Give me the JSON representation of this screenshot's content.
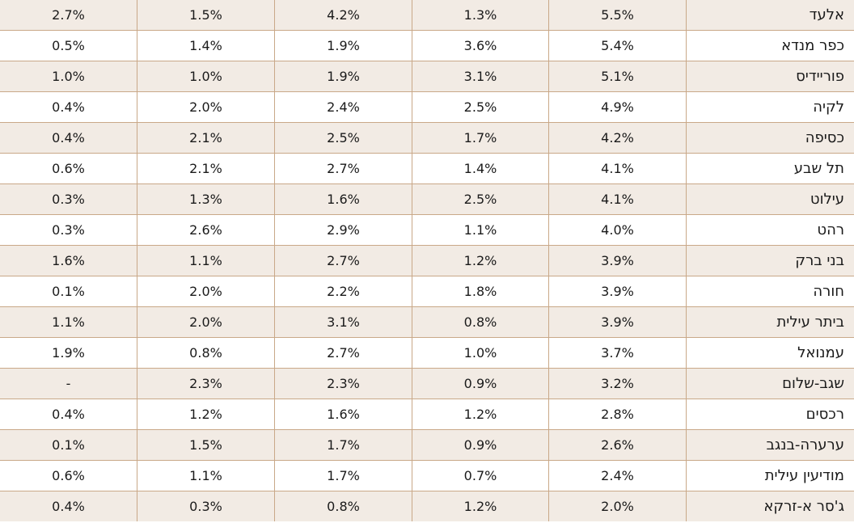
{
  "table": {
    "rows": [
      {
        "name": "אלעד",
        "values": [
          "5.5%",
          "1.3%",
          "4.2%",
          "1.5%",
          "2.7%"
        ]
      },
      {
        "name": "כפר מנדא",
        "values": [
          "5.4%",
          "3.6%",
          "1.9%",
          "1.4%",
          "0.5%"
        ]
      },
      {
        "name": "פוריידיס",
        "values": [
          "5.1%",
          "3.1%",
          "1.9%",
          "1.0%",
          "1.0%"
        ]
      },
      {
        "name": "לקיה",
        "values": [
          "4.9%",
          "2.5%",
          "2.4%",
          "2.0%",
          "0.4%"
        ]
      },
      {
        "name": "כסיפה",
        "values": [
          "4.2%",
          "1.7%",
          "2.5%",
          "2.1%",
          "0.4%"
        ]
      },
      {
        "name": "תל שבע",
        "values": [
          "4.1%",
          "1.4%",
          "2.7%",
          "2.1%",
          "0.6%"
        ]
      },
      {
        "name": "עילוט",
        "values": [
          "4.1%",
          "2.5%",
          "1.6%",
          "1.3%",
          "0.3%"
        ]
      },
      {
        "name": "רהט",
        "values": [
          "4.0%",
          "1.1%",
          "2.9%",
          "2.6%",
          "0.3%"
        ]
      },
      {
        "name": "בני ברק",
        "values": [
          "3.9%",
          "1.2%",
          "2.7%",
          "1.1%",
          "1.6%"
        ]
      },
      {
        "name": "חורה",
        "values": [
          "3.9%",
          "1.8%",
          "2.2%",
          "2.0%",
          "0.1%"
        ]
      },
      {
        "name": "ביתר עילית",
        "values": [
          "3.9%",
          "0.8%",
          "3.1%",
          "2.0%",
          "1.1%"
        ]
      },
      {
        "name": "עמנואל",
        "values": [
          "3.7%",
          "1.0%",
          "2.7%",
          "0.8%",
          "1.9%"
        ]
      },
      {
        "name": "שגב-שלום",
        "values": [
          "3.2%",
          "0.9%",
          "2.3%",
          "2.3%",
          "-"
        ]
      },
      {
        "name": "רכסים",
        "values": [
          "2.8%",
          "1.2%",
          "1.6%",
          "1.2%",
          "0.4%"
        ]
      },
      {
        "name": "ערערה-בנגב",
        "values": [
          "2.6%",
          "0.9%",
          "1.7%",
          "1.5%",
          "0.1%"
        ]
      },
      {
        "name": "מודיעין עילית",
        "values": [
          "2.4%",
          "0.7%",
          "1.7%",
          "1.1%",
          "0.6%"
        ]
      },
      {
        "name": "ג'סר א-זרקא",
        "values": [
          "2.0%",
          "1.2%",
          "0.8%",
          "0.3%",
          "0.4%"
        ]
      }
    ]
  }
}
